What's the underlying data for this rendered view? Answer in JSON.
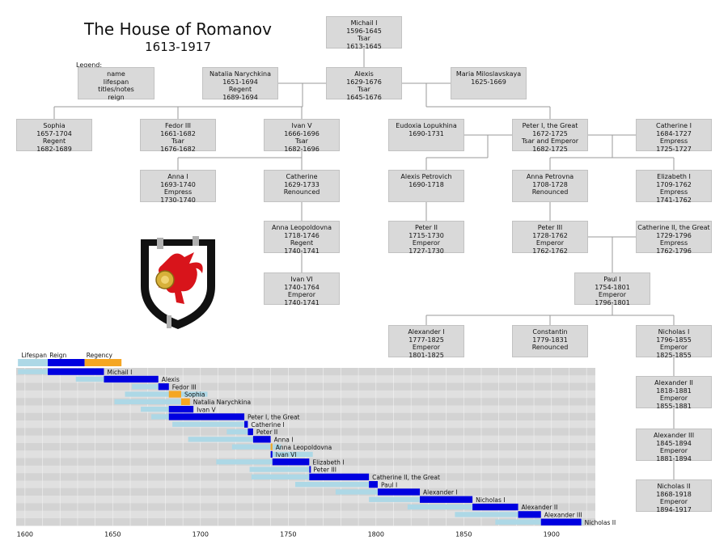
{
  "title": "The House of Romanov",
  "subtitle": "1613-1917",
  "legend": {
    "caption": "Legend:",
    "lines": [
      "name",
      "lifespan",
      "titles/notes",
      "reign"
    ]
  },
  "people": [
    {
      "name": "Michail I",
      "lines": [
        "1596-1645",
        "Tsar",
        "1613-1645"
      ]
    },
    {
      "name": "Natalia Narychkina",
      "lines": [
        "1651-1694",
        "Regent",
        "1689-1694"
      ]
    },
    {
      "name": "Alexis",
      "lines": [
        "1629-1676",
        "Tsar",
        "1645-1676"
      ]
    },
    {
      "name": "Maria Miloslavskaya",
      "lines": [
        "1625-1669"
      ]
    },
    {
      "name": "Sophia",
      "lines": [
        "1657-1704",
        "Regent",
        "1682-1689"
      ]
    },
    {
      "name": "Fedor III",
      "lines": [
        "1661-1682",
        "Tsar",
        "1676-1682"
      ]
    },
    {
      "name": "Ivan V",
      "lines": [
        "1666-1696",
        "Tsar",
        "1682-1696"
      ]
    },
    {
      "name": "Eudoxia Lopukhina",
      "lines": [
        "1690-1731"
      ]
    },
    {
      "name": "Peter I, the Great",
      "lines": [
        "1672-1725",
        "Tsar and Emperor",
        "1682-1725"
      ]
    },
    {
      "name": "Catherine I",
      "lines": [
        "1684-1727",
        "Empress",
        "1725-1727"
      ]
    },
    {
      "name": "Anna I",
      "lines": [
        "1693-1740",
        "Empress",
        "1730-1740"
      ]
    },
    {
      "name": "Catherine",
      "lines": [
        "1629-1733",
        "Renounced"
      ]
    },
    {
      "name": "Alexis Petrovich",
      "lines": [
        "1690-1718"
      ]
    },
    {
      "name": "Anna Petrovna",
      "lines": [
        "1708-1728",
        "Renounced"
      ]
    },
    {
      "name": "Elizabeth I",
      "lines": [
        "1709-1762",
        "Empress",
        "1741-1762"
      ]
    },
    {
      "name": "Anna Leopoldovna",
      "lines": [
        "1718-1746",
        "Regent",
        "1740-1741"
      ]
    },
    {
      "name": "Peter II",
      "lines": [
        "1715-1730",
        "Emperor",
        "1727-1730"
      ]
    },
    {
      "name": "Peter III",
      "lines": [
        "1728-1762",
        "Emperor",
        "1762-1762"
      ]
    },
    {
      "name": "Catherine II, the Great",
      "lines": [
        "1729-1796",
        "Empress",
        "1762-1796"
      ]
    },
    {
      "name": "Ivan VI",
      "lines": [
        "1740-1764",
        "Emperor",
        "1740-1741"
      ]
    },
    {
      "name": "Paul I",
      "lines": [
        "1754-1801",
        "Emperor",
        "1796-1801"
      ]
    },
    {
      "name": "Alexander I",
      "lines": [
        "1777-1825",
        "Emperor",
        "1801-1825"
      ]
    },
    {
      "name": "Constantin",
      "lines": [
        "1779-1831",
        "Renounced"
      ]
    },
    {
      "name": "Nicholas I",
      "lines": [
        "1796-1855",
        "Emperor",
        "1825-1855"
      ]
    },
    {
      "name": "Alexander II",
      "lines": [
        "1818-1881",
        "Emperor",
        "1855-1881"
      ]
    },
    {
      "name": "Alexander III",
      "lines": [
        "1845-1894",
        "Emperor",
        "1881-1894"
      ]
    },
    {
      "name": "Nicholas II",
      "lines": [
        "1868-1918",
        "Emperor",
        "1894-1917"
      ]
    }
  ],
  "chart_data": {
    "type": "bar",
    "legend": [
      "Lifespan",
      "Reign",
      "Regency"
    ],
    "colors": {
      "lifespan": "#add8e6",
      "reign": "#0000e0",
      "regency": "#f5a623",
      "band_a": "#d3d3d3",
      "band_b": "#e0e0e0",
      "grid": "#f2f2f2"
    },
    "xlim": [
      1595,
      1925
    ],
    "xticks": [
      1600,
      1650,
      1700,
      1750,
      1800,
      1850,
      1900
    ],
    "rows": [
      {
        "name": "Michail I",
        "born": 1596,
        "died": 1645,
        "reign": [
          [
            1613,
            1645
          ]
        ],
        "regency": []
      },
      {
        "name": "Alexis",
        "born": 1629,
        "died": 1676,
        "reign": [
          [
            1645,
            1676
          ]
        ],
        "regency": []
      },
      {
        "name": "Fedor III",
        "born": 1661,
        "died": 1682,
        "reign": [
          [
            1676,
            1682
          ]
        ],
        "regency": []
      },
      {
        "name": "Sophia",
        "born": 1657,
        "died": 1704,
        "reign": [],
        "regency": [
          [
            1682,
            1689
          ]
        ]
      },
      {
        "name": "Natalia Narychkina",
        "born": 1651,
        "died": 1694,
        "reign": [],
        "regency": [
          [
            1689,
            1694
          ]
        ]
      },
      {
        "name": "Ivan V",
        "born": 1666,
        "died": 1696,
        "reign": [
          [
            1682,
            1696
          ]
        ],
        "regency": []
      },
      {
        "name": "Peter I, the Great",
        "born": 1672,
        "died": 1725,
        "reign": [
          [
            1682,
            1725
          ]
        ],
        "regency": []
      },
      {
        "name": "Catherine I",
        "born": 1684,
        "died": 1727,
        "reign": [
          [
            1725,
            1727
          ]
        ],
        "regency": []
      },
      {
        "name": "Peter II",
        "born": 1715,
        "died": 1730,
        "reign": [
          [
            1727,
            1730
          ]
        ],
        "regency": []
      },
      {
        "name": "Anna I",
        "born": 1693,
        "died": 1740,
        "reign": [
          [
            1730,
            1740
          ]
        ],
        "regency": []
      },
      {
        "name": "Anna Leopoldovna",
        "born": 1718,
        "died": 1746,
        "reign": [],
        "regency": [
          [
            1740,
            1741
          ]
        ]
      },
      {
        "name": "Ivan VI",
        "born": 1740,
        "died": 1764,
        "reign": [
          [
            1740,
            1741
          ]
        ],
        "regency": []
      },
      {
        "name": "Elizabeth I",
        "born": 1709,
        "died": 1762,
        "reign": [
          [
            1741,
            1762
          ]
        ],
        "regency": []
      },
      {
        "name": "Peter III",
        "born": 1728,
        "died": 1762,
        "reign": [
          [
            1762,
            1762.5
          ]
        ],
        "regency": []
      },
      {
        "name": "Catherine II, the Great",
        "born": 1729,
        "died": 1796,
        "reign": [
          [
            1762,
            1796
          ]
        ],
        "regency": []
      },
      {
        "name": "Paul I",
        "born": 1754,
        "died": 1801,
        "reign": [
          [
            1796,
            1801
          ]
        ],
        "regency": []
      },
      {
        "name": "Alexander I",
        "born": 1777,
        "died": 1825,
        "reign": [
          [
            1801,
            1825
          ]
        ],
        "regency": []
      },
      {
        "name": "Nicholas I",
        "born": 1796,
        "died": 1855,
        "reign": [
          [
            1825,
            1855
          ]
        ],
        "regency": []
      },
      {
        "name": "Alexander II",
        "born": 1818,
        "died": 1881,
        "reign": [
          [
            1855,
            1881
          ]
        ],
        "regency": []
      },
      {
        "name": "Alexander III",
        "born": 1845,
        "died": 1894,
        "reign": [
          [
            1881,
            1894
          ]
        ],
        "regency": []
      },
      {
        "name": "Nicholas II",
        "born": 1868,
        "died": 1918,
        "reign": [
          [
            1894,
            1917
          ]
        ],
        "regency": []
      }
    ]
  }
}
